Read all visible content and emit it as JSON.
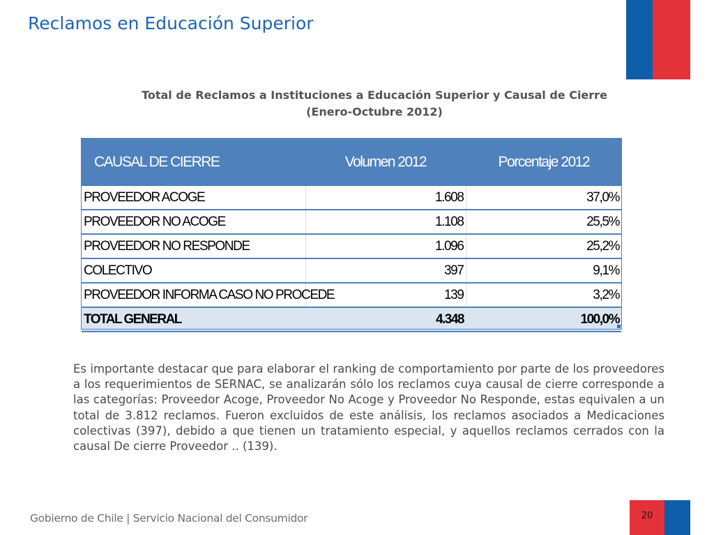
{
  "slide": {
    "title": "Reclamos en Educación Superior",
    "subtitle_line1": "Total de Reclamos a Instituciones a Educación Superior y Causal de Cierre",
    "subtitle_line2": "(Enero-Octubre 2012)"
  },
  "table": {
    "headers": [
      "CAUSAL DE CIERRE",
      "Volumen 2012",
      "Porcentaje 2012"
    ],
    "rows": [
      {
        "causal": "PROVEEDOR ACOGE",
        "volumen": "1.608",
        "porcentaje": "37,0%"
      },
      {
        "causal": "PROVEEDOR NO ACOGE",
        "volumen": "1.108",
        "porcentaje": "25,5%"
      },
      {
        "causal": "PROVEEDOR NO RESPONDE",
        "volumen": "1.096",
        "porcentaje": "25,2%"
      },
      {
        "causal": "COLECTIVO",
        "volumen": "397",
        "porcentaje": "9,1%"
      },
      {
        "causal": "PROVEEDOR INFORMA CASO NO PROCEDE",
        "volumen": "139",
        "porcentaje": "3,2%"
      }
    ],
    "total": {
      "causal": "TOTAL GENERAL",
      "volumen": "4.348",
      "porcentaje": "100,0%"
    }
  },
  "body_text": "Es importante destacar que para elaborar el ranking de comportamiento por parte de los proveedores a los requerimientos de SERNAC, se analizarán sólo los reclamos cuya causal de cierre corresponde a las categorías: Proveedor Acoge, Proveedor No Acoge y Proveedor No Responde, estas equivalen a un total de 3.812 reclamos. Fueron excluidos de este análisis, los reclamos asociados a Medicaciones colectivas (397), debido a que tienen un tratamiento especial,  y aquellos reclamos cerrados con la causal De cierre Proveedor .. (139).",
  "footer": {
    "text": "Gobierno de Chile | Servicio Nacional del Consumidor",
    "page_number": "20"
  },
  "colors": {
    "flag_blue": "#0f5ea9",
    "flag_red": "#e4323b",
    "title_blue": "#1e64b4",
    "table_header": "#4f81bd",
    "table_total_bg": "#dbe5f1"
  }
}
